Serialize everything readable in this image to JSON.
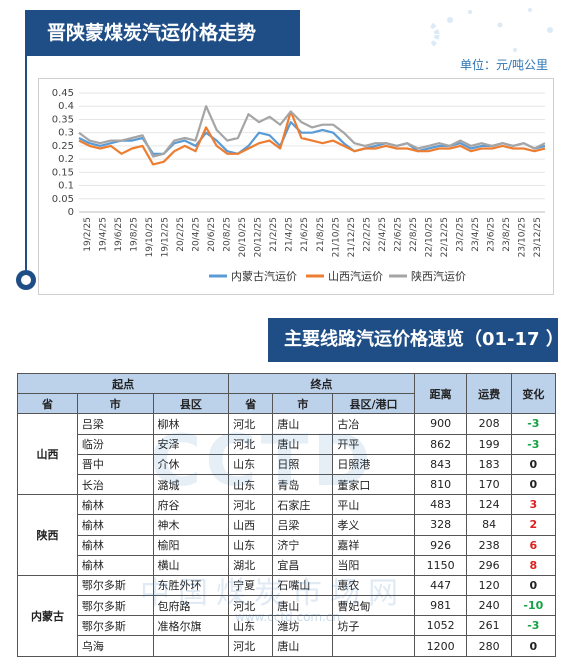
{
  "header": {
    "chart_title": "晋陕蒙煤炭汽运价格走势",
    "unit": "单位：元/吨公里",
    "table_title": "主要线路汽运价格速览（01-17 ）"
  },
  "watermark": {
    "big": "CCTD",
    "cn": "中国煤炭市场网",
    "url": "www.cctd.com.cn"
  },
  "colors": {
    "blue": "#5b9bd5",
    "orange": "#ed7d31",
    "gray": "#a5a5a5",
    "accent": "#1f4e87"
  },
  "chart_data": {
    "type": "line",
    "title": "",
    "xlabel": "",
    "ylabel": "",
    "ylim": [
      0,
      0.45
    ],
    "y_ticks": [
      "0",
      "0.05",
      "0.1",
      "0.15",
      "0.2",
      "0.25",
      "0.3",
      "0.35",
      "0.4",
      "0.45"
    ],
    "x_ticks": [
      "19/2/25",
      "19/4/25",
      "19/6/25",
      "19/8/25",
      "19/10/25",
      "19/12/25",
      "20/2/25",
      "20/4/25",
      "20/6/25",
      "20/8/25",
      "20/10/25",
      "20/12/25",
      "21/2/25",
      "21/4/25",
      "21/6/25",
      "21/8/25",
      "21/10/25",
      "21/12/25",
      "22/2/25",
      "22/4/25",
      "22/6/25",
      "22/8/25",
      "22/10/25",
      "22/12/25",
      "23/2/25",
      "23/4/25",
      "23/6/25",
      "23/8/25",
      "23/10/25",
      "23/12/25"
    ],
    "legend_position": "bottom",
    "series": [
      {
        "name": "内蒙古汽运价",
        "color": "#5b9bd5",
        "values": [
          0.28,
          0.26,
          0.25,
          0.26,
          0.27,
          0.27,
          0.28,
          0.22,
          0.22,
          0.26,
          0.27,
          0.25,
          0.3,
          0.27,
          0.23,
          0.22,
          0.25,
          0.3,
          0.29,
          0.25,
          0.34,
          0.3,
          0.3,
          0.31,
          0.3,
          0.26,
          0.23,
          0.24,
          0.25,
          0.26,
          0.25,
          0.26,
          0.23,
          0.24,
          0.25,
          0.25,
          0.26,
          0.24,
          0.25,
          0.25,
          0.26,
          0.25,
          0.26,
          0.24,
          0.25
        ]
      },
      {
        "name": "山西汽运价",
        "color": "#ed7d31",
        "values": [
          0.27,
          0.25,
          0.24,
          0.25,
          0.22,
          0.24,
          0.25,
          0.18,
          0.19,
          0.23,
          0.25,
          0.23,
          0.32,
          0.25,
          0.22,
          0.22,
          0.24,
          0.26,
          0.27,
          0.24,
          0.38,
          0.28,
          0.27,
          0.26,
          0.27,
          0.25,
          0.23,
          0.24,
          0.24,
          0.25,
          0.24,
          0.24,
          0.23,
          0.23,
          0.24,
          0.24,
          0.25,
          0.23,
          0.24,
          0.24,
          0.25,
          0.24,
          0.24,
          0.23,
          0.24
        ]
      },
      {
        "name": "陕西汽运价",
        "color": "#a5a5a5",
        "values": [
          0.3,
          0.27,
          0.26,
          0.27,
          0.27,
          0.28,
          0.29,
          0.21,
          0.22,
          0.27,
          0.28,
          0.27,
          0.4,
          0.31,
          0.27,
          0.28,
          0.37,
          0.34,
          0.36,
          0.33,
          0.38,
          0.34,
          0.32,
          0.33,
          0.33,
          0.3,
          0.26,
          0.25,
          0.26,
          0.26,
          0.25,
          0.26,
          0.24,
          0.25,
          0.26,
          0.25,
          0.27,
          0.25,
          0.26,
          0.25,
          0.26,
          0.25,
          0.26,
          0.24,
          0.26
        ]
      }
    ]
  },
  "table": {
    "group_headers": {
      "origin": "起点",
      "dest": "终点",
      "distance": "距离",
      "freight": "运费",
      "change": "变化"
    },
    "sub_headers": {
      "prov": "省",
      "city": "市",
      "county": "县区",
      "prov2": "省",
      "city2": "市",
      "county2": "县区/港口"
    },
    "groups": [
      {
        "province": "山西",
        "rows": [
          {
            "city": "吕梁",
            "county": "柳林",
            "dprov": "河北",
            "dcity": "唐山",
            "dcounty": "古冶",
            "distance": "900",
            "freight": "208",
            "change": "-3",
            "sign": "neg"
          },
          {
            "city": "临汾",
            "county": "安泽",
            "dprov": "河北",
            "dcity": "唐山",
            "dcounty": "开平",
            "distance": "862",
            "freight": "199",
            "change": "-3",
            "sign": "neg"
          },
          {
            "city": "晋中",
            "county": "介休",
            "dprov": "山东",
            "dcity": "日照",
            "dcounty": "日照港",
            "distance": "843",
            "freight": "183",
            "change": "0",
            "sign": "zero"
          },
          {
            "city": "长治",
            "county": "潞城",
            "dprov": "山东",
            "dcity": "青岛",
            "dcounty": "董家口",
            "distance": "810",
            "freight": "170",
            "change": "0",
            "sign": "zero"
          }
        ]
      },
      {
        "province": "陕西",
        "rows": [
          {
            "city": "榆林",
            "county": "府谷",
            "dprov": "河北",
            "dcity": "石家庄",
            "dcounty": "平山",
            "distance": "483",
            "freight": "124",
            "change": "3",
            "sign": "pos"
          },
          {
            "city": "榆林",
            "county": "神木",
            "dprov": "山西",
            "dcity": "吕梁",
            "dcounty": "孝义",
            "distance": "328",
            "freight": "84",
            "change": "2",
            "sign": "pos"
          },
          {
            "city": "榆林",
            "county": "榆阳",
            "dprov": "山东",
            "dcity": "济宁",
            "dcounty": "嘉祥",
            "distance": "926",
            "freight": "238",
            "change": "6",
            "sign": "pos"
          },
          {
            "city": "榆林",
            "county": "横山",
            "dprov": "湖北",
            "dcity": "宜昌",
            "dcounty": "当阳",
            "distance": "1150",
            "freight": "296",
            "change": "8",
            "sign": "pos"
          }
        ]
      },
      {
        "province": "内蒙古",
        "rows": [
          {
            "city": "鄂尔多斯",
            "county": "东胜外环",
            "dprov": "宁夏",
            "dcity": "石嘴山",
            "dcounty": "惠农",
            "distance": "447",
            "freight": "120",
            "change": "0",
            "sign": "zero"
          },
          {
            "city": "鄂尔多斯",
            "county": "包府路",
            "dprov": "河北",
            "dcity": "唐山",
            "dcounty": "曹妃甸",
            "distance": "981",
            "freight": "240",
            "change": "-10",
            "sign": "neg"
          },
          {
            "city": "鄂尔多斯",
            "county": "准格尔旗",
            "dprov": "山东",
            "dcity": "潍坊",
            "dcounty": "坊子",
            "distance": "1052",
            "freight": "261",
            "change": "-3",
            "sign": "neg"
          },
          {
            "city": "乌海",
            "county": "",
            "dprov": "河北",
            "dcity": "唐山",
            "dcounty": "",
            "distance": "1200",
            "freight": "280",
            "change": "0",
            "sign": "zero"
          }
        ]
      }
    ]
  }
}
